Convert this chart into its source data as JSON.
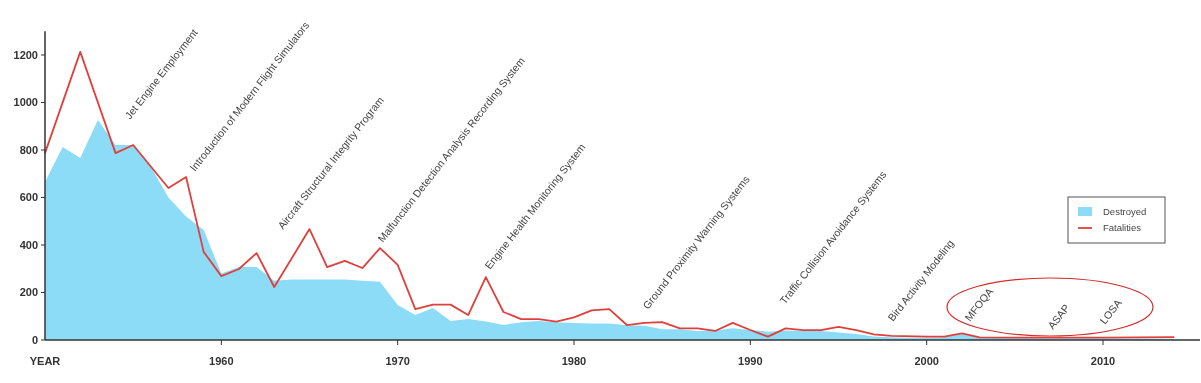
{
  "chart_data": {
    "type": "area",
    "xlabel": "YEAR",
    "xlim": [
      1950,
      2015.5
    ],
    "xticks": [
      1960,
      1970,
      1980,
      1990,
      2000,
      2010
    ],
    "ylim": [
      0,
      1300
    ],
    "yticks": [
      0,
      200,
      400,
      600,
      800,
      1000,
      1200
    ],
    "grid": false,
    "legend": "right",
    "series": [
      {
        "name": "Destroyed",
        "color": "#8ddcf7",
        "x": [
          1950,
          1951,
          1952,
          1953,
          1954,
          1955,
          1956,
          1957,
          1958,
          1959,
          1960,
          1961,
          1962,
          1963,
          1964,
          1965,
          1966,
          1967,
          1968,
          1969,
          1970,
          1971,
          1972,
          1973,
          1974,
          1975,
          1976,
          1977,
          1978,
          1979,
          1980,
          1981,
          1982,
          1983,
          1984,
          1985,
          1986,
          1987,
          1988,
          1989,
          1990,
          1991,
          1992,
          1993,
          1994,
          1995,
          1996,
          1997,
          1998,
          1999,
          2000,
          2001,
          2002,
          2003,
          2014
        ],
        "values": [
          665,
          813,
          766,
          926,
          821,
          821,
          730,
          600,
          520,
          463,
          280,
          307,
          307,
          250,
          255,
          255,
          255,
          255,
          250,
          245,
          147,
          105,
          135,
          80,
          88,
          78,
          63,
          75,
          80,
          75,
          72,
          70,
          70,
          62,
          60,
          45,
          45,
          38,
          40,
          50,
          42,
          35,
          40,
          38,
          38,
          32,
          25,
          15,
          12,
          10,
          10,
          12,
          25,
          8,
          5
        ]
      },
      {
        "name": "Fatalities",
        "type": "line",
        "color": "#e0403c",
        "x": [
          1950,
          1952,
          1954,
          1955,
          1957,
          1958,
          1959,
          1960,
          1961,
          1962,
          1963,
          1965,
          1966,
          1967,
          1968,
          1969,
          1970,
          1971,
          1972,
          1973,
          1974,
          1975,
          1976,
          1977,
          1978,
          1979,
          1980,
          1981,
          1982,
          1983,
          1984,
          1985,
          1986,
          1987,
          1988,
          1989,
          1990,
          1991,
          1992,
          1993,
          1994,
          1995,
          1996,
          1997,
          1998,
          2000,
          2001,
          2002,
          2003,
          2005,
          2010,
          2014
        ],
        "values": [
          787,
          1213,
          787,
          821,
          640,
          686,
          371,
          269,
          299,
          366,
          223,
          467,
          307,
          333,
          303,
          387,
          316,
          130,
          149,
          149,
          105,
          265,
          118,
          88,
          88,
          77,
          95,
          125,
          130,
          63,
          72,
          75,
          49,
          49,
          38,
          72,
          42,
          14,
          49,
          42,
          42,
          55,
          42,
          24,
          17,
          14,
          14,
          28,
          11,
          10,
          10,
          12
        ]
      }
    ],
    "annotations": [
      "Jet Engine Employment",
      "Introduction of Modern Flight Simulators",
      "Aircraft Structural Integrity Program",
      "Malfunction Detection Analysis Recording System",
      "Engine Health Monitoring System",
      "Ground Proximity Warning Systems",
      "Traffic Collision Avoidance Systems",
      "Bird Activity Modeling",
      "MFOQA",
      "ASAP",
      "LOSA"
    ]
  }
}
